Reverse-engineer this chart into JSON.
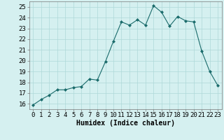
{
  "x": [
    0,
    1,
    2,
    3,
    4,
    5,
    6,
    7,
    8,
    9,
    10,
    11,
    12,
    13,
    14,
    15,
    16,
    17,
    18,
    19,
    20,
    21,
    22,
    23
  ],
  "y": [
    15.9,
    16.4,
    16.8,
    17.3,
    17.3,
    17.5,
    17.6,
    18.3,
    18.2,
    19.9,
    21.8,
    23.6,
    23.3,
    23.8,
    23.3,
    25.1,
    24.5,
    23.2,
    24.1,
    23.7,
    23.6,
    20.9,
    19.0,
    17.7
  ],
  "xlabel": "Humidex (Indice chaleur)",
  "ylim": [
    15.5,
    25.5
  ],
  "xlim": [
    -0.5,
    23.5
  ],
  "yticks": [
    16,
    17,
    18,
    19,
    20,
    21,
    22,
    23,
    24,
    25
  ],
  "xticks": [
    0,
    1,
    2,
    3,
    4,
    5,
    6,
    7,
    8,
    9,
    10,
    11,
    12,
    13,
    14,
    15,
    16,
    17,
    18,
    19,
    20,
    21,
    22,
    23
  ],
  "line_color": "#1a6b6b",
  "marker": "D",
  "marker_size": 2.0,
  "bg_color": "#d5f0f0",
  "grid_color": "#aed8d8",
  "xlabel_fontsize": 7,
  "tick_fontsize": 6.5
}
